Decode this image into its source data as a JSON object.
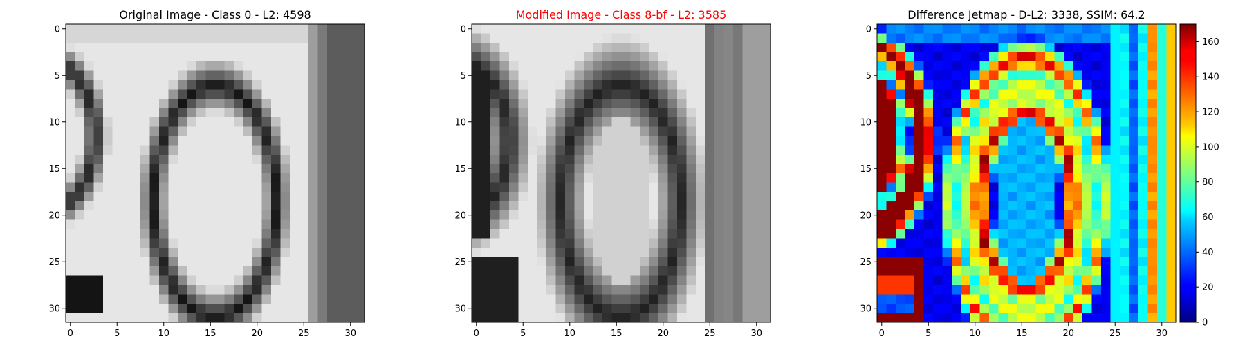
{
  "chart_data": [
    {
      "type": "heatmap",
      "title": "Original Image - Class 0 - L2: 4598",
      "title_color": "#000000",
      "colormap": "gray",
      "grid_size": [
        32,
        32
      ],
      "xlim": [
        -0.5,
        31.5
      ],
      "ylim": [
        31.5,
        -0.5
      ],
      "xticks": [
        0,
        5,
        10,
        15,
        20,
        25,
        30
      ],
      "yticks": [
        0,
        5,
        10,
        15,
        20,
        25,
        30
      ],
      "xlabel": "",
      "ylabel": "",
      "grid": false
    },
    {
      "type": "heatmap",
      "title": "Modified Image - Class 8-bf - L2: 3585",
      "title_color": "#ff0000",
      "colormap": "gray",
      "grid_size": [
        32,
        32
      ],
      "xlim": [
        -0.5,
        31.5
      ],
      "ylim": [
        31.5,
        -0.5
      ],
      "xticks": [
        0,
        5,
        10,
        15,
        20,
        25,
        30
      ],
      "yticks": [
        0,
        5,
        10,
        15,
        20,
        25,
        30
      ],
      "xlabel": "",
      "ylabel": "",
      "grid": false
    },
    {
      "type": "heatmap",
      "title": "Difference Jetmap - D-L2: 3338, SSIM: 64.2",
      "title_color": "#000000",
      "colormap": "jet",
      "grid_size": [
        32,
        32
      ],
      "xlim": [
        -0.5,
        31.5
      ],
      "ylim": [
        31.5,
        -0.5
      ],
      "xticks": [
        0,
        5,
        10,
        15,
        20,
        25,
        30
      ],
      "yticks": [
        0,
        5,
        10,
        15,
        20,
        25,
        30
      ],
      "xlabel": "",
      "ylabel": "",
      "grid": false,
      "colorbar": {
        "range": [
          0,
          170
        ],
        "ticks": [
          0,
          20,
          40,
          60,
          80,
          100,
          120,
          140,
          160
        ]
      }
    }
  ]
}
